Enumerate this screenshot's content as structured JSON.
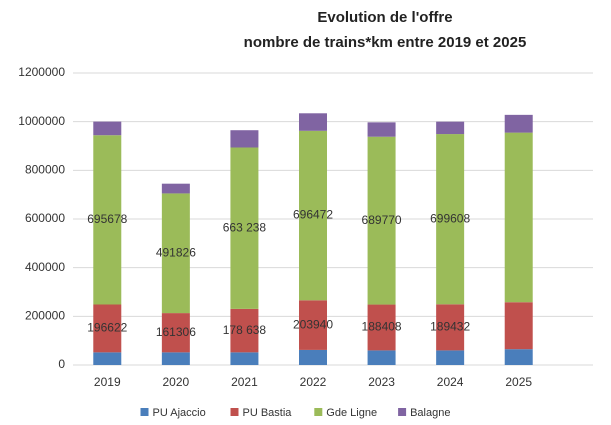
{
  "chart_data": {
    "type": "stacked_bar",
    "title": [
      "Evolution de l'offre",
      "nombre de  trains*km entre 2019 et 2025"
    ],
    "categories": [
      "2019",
      "2020",
      "2021",
      "2022",
      "2023",
      "2024",
      "2025"
    ],
    "series": [
      {
        "name": "PU Ajaccio",
        "color": "#4a7ebb",
        "values": [
          52000,
          52000,
          52000,
          62000,
          60000,
          60000,
          65000
        ]
      },
      {
        "name": "PU Bastia",
        "color": "#c0504d",
        "values": [
          196622,
          161306,
          178638,
          203940,
          188408,
          189432,
          193000
        ],
        "value_labels": [
          "196622",
          "161306",
          "178 638",
          "203940",
          "188408",
          "189432",
          null
        ]
      },
      {
        "name": "Gde Ligne",
        "color": "#9bbb59",
        "values": [
          695678,
          491826,
          663238,
          696472,
          689770,
          699608,
          697000
        ],
        "value_labels": [
          "695678",
          "491826",
          "663 238",
          "696472",
          "689770",
          "699608",
          null
        ]
      },
      {
        "name": "Balagne",
        "color": "#8064a2",
        "values": [
          56000,
          40000,
          71000,
          72000,
          59000,
          51000,
          73000
        ]
      }
    ],
    "ylim": [
      0,
      1200000
    ],
    "yticks": [
      0,
      200000,
      400000,
      600000,
      800000,
      1000000,
      1200000
    ],
    "grid": true,
    "legend": "bottom"
  }
}
